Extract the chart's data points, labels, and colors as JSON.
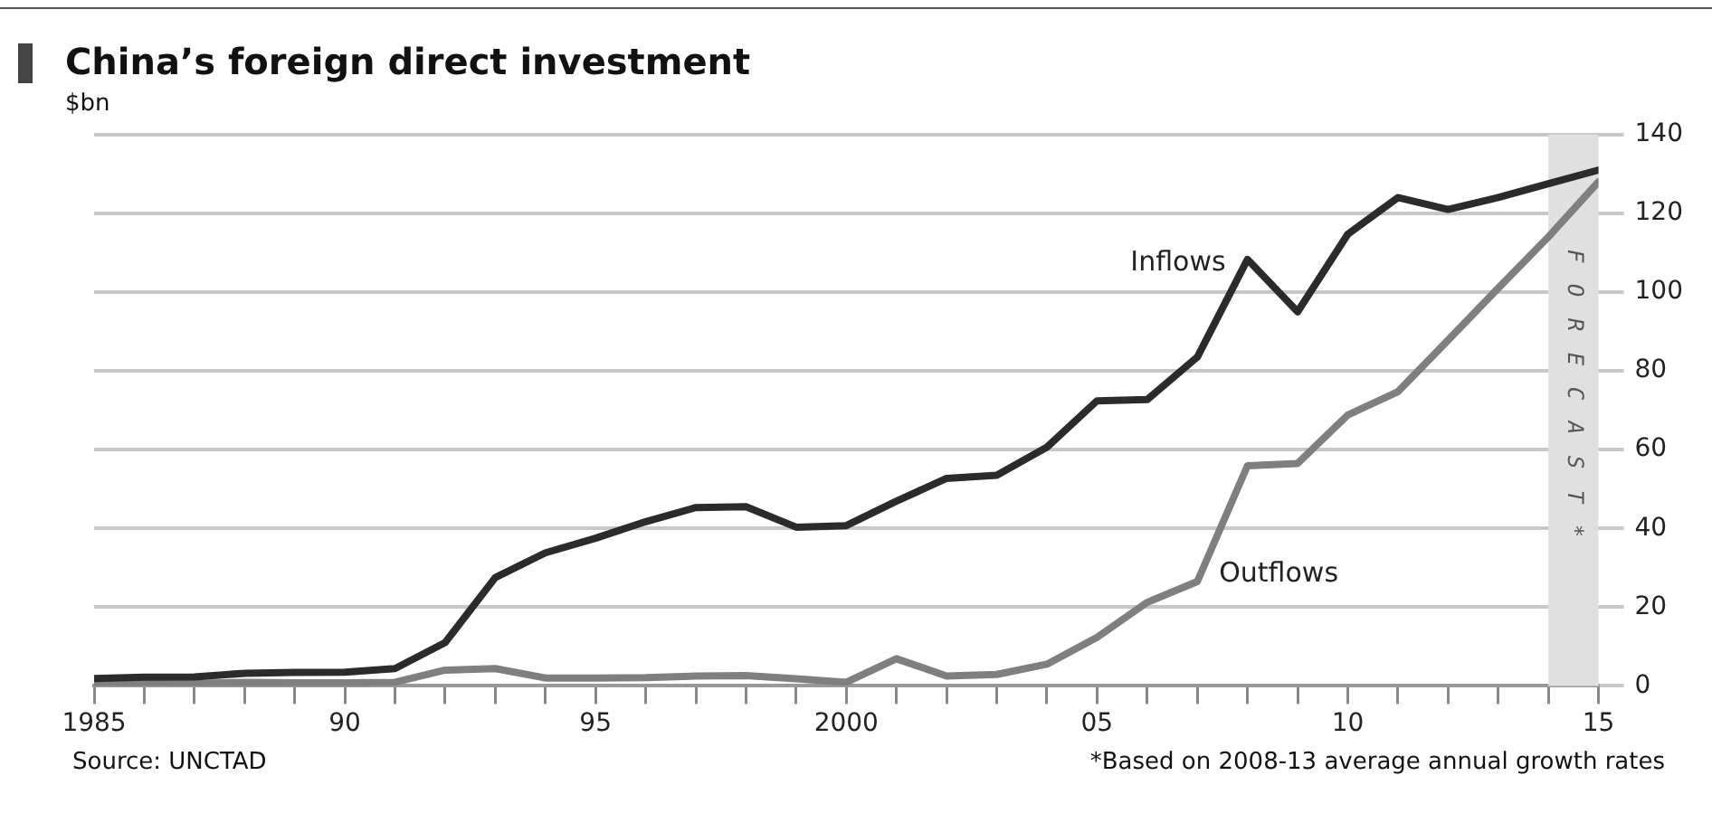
{
  "chart_data": {
    "type": "line",
    "title": "China’s foreign direct investment",
    "ylabel": "$bn",
    "x": [
      1985,
      1986,
      1987,
      1988,
      1989,
      1990,
      1991,
      1992,
      1993,
      1994,
      1995,
      1996,
      1997,
      1998,
      1999,
      2000,
      2001,
      2002,
      2003,
      2004,
      2005,
      2006,
      2007,
      2008,
      2009,
      2010,
      2011,
      2012,
      2013,
      2014,
      2015
    ],
    "series": [
      {
        "name": "Inflows",
        "color": "#2b2b2b",
        "values": [
          1.9,
          2.2,
          2.3,
          3.2,
          3.4,
          3.5,
          4.4,
          11,
          27.5,
          33.8,
          37.5,
          41.7,
          45.3,
          45.5,
          40.3,
          40.7,
          46.9,
          52.7,
          53.5,
          60.6,
          72.4,
          72.7,
          83.5,
          108.3,
          95,
          114.7,
          124,
          121,
          124,
          127.5,
          131
        ]
      },
      {
        "name": "Outflows",
        "color": "#7f7f7f",
        "values": [
          0.6,
          0.5,
          0.6,
          0.9,
          0.8,
          0.8,
          0.9,
          4,
          4.4,
          2,
          2,
          2.1,
          2.5,
          2.6,
          1.8,
          0.9,
          6.9,
          2.5,
          2.9,
          5.5,
          12.3,
          21.2,
          26.5,
          55.9,
          56.5,
          68.8,
          74.7,
          87.8,
          101,
          114,
          128
        ]
      }
    ],
    "xlim": [
      1985,
      2015
    ],
    "xticks": [
      1985,
      {
        "value": 1986,
        "label": null
      },
      {
        "value": 1987,
        "label": null
      },
      {
        "value": 1988,
        "label": null
      },
      {
        "value": 1989,
        "label": null
      },
      {
        "value": 1990,
        "label": "90"
      },
      {
        "value": 1991,
        "label": null
      },
      {
        "value": 1992,
        "label": null
      },
      {
        "value": 1993,
        "label": null
      },
      {
        "value": 1994,
        "label": null
      },
      {
        "value": 1995,
        "label": "95"
      },
      {
        "value": 1996,
        "label": null
      },
      {
        "value": 1997,
        "label": null
      },
      {
        "value": 1998,
        "label": null
      },
      {
        "value": 1999,
        "label": null
      },
      2000,
      {
        "value": 2001,
        "label": null
      },
      {
        "value": 2002,
        "label": null
      },
      {
        "value": 2003,
        "label": null
      },
      {
        "value": 2004,
        "label": null
      },
      {
        "value": 2005,
        "label": "05"
      },
      {
        "value": 2006,
        "label": null
      },
      {
        "value": 2007,
        "label": null
      },
      {
        "value": 2008,
        "label": null
      },
      {
        "value": 2009,
        "label": null
      },
      {
        "value": 2010,
        "label": "10"
      },
      {
        "value": 2011,
        "label": null
      },
      {
        "value": 2012,
        "label": null
      },
      {
        "value": 2013,
        "label": null
      },
      {
        "value": 2014,
        "label": null
      },
      {
        "value": 2015,
        "label": "15"
      }
    ],
    "ylim": [
      0,
      140
    ],
    "yticks": [
      0,
      20,
      40,
      60,
      80,
      100,
      120,
      140
    ],
    "bands": [
      {
        "axis": "x",
        "from": 2014,
        "to": 2015,
        "label": "FORECAST*",
        "color": "#e0e0e0"
      }
    ],
    "annotations": [
      "Source: UNCTAD",
      "*Based on 2008-13 average annual growth rates"
    ],
    "grid": "y",
    "legend": false,
    "marker": "none",
    "line_style": "solid"
  }
}
